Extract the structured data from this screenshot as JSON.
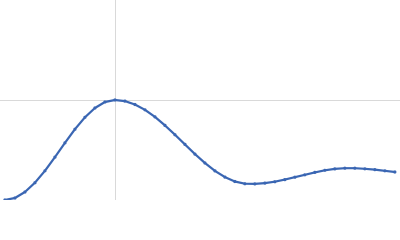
{
  "chart_data": {
    "type": "line",
    "color": "#3a66b3",
    "grid": true,
    "markers": true,
    "x": [
      0.043,
      0.13,
      0.217,
      0.304,
      0.391,
      0.478,
      0.565,
      0.652,
      0.739,
      0.826,
      0.913,
      1,
      1.087,
      1.174,
      1.261,
      1.348,
      1.435,
      1.522,
      1.609,
      1.696,
      1.783,
      1.87,
      1.957,
      2.043,
      2.13,
      2.217,
      2.304,
      2.391,
      2.478,
      2.565,
      2.652,
      2.739,
      2.826,
      2.913,
      3.0,
      3.087,
      3.174,
      3.261,
      3.348,
      3.435
    ],
    "values": [
      0,
      0.02,
      0.08,
      0.173,
      0.292,
      0.429,
      0.571,
      0.708,
      0.827,
      0.92,
      0.98,
      1,
      0.989,
      0.955,
      0.902,
      0.831,
      0.746,
      0.653,
      0.556,
      0.459,
      0.37,
      0.291,
      0.229,
      0.185,
      0.163,
      0.161,
      0.169,
      0.183,
      0.204,
      0.228,
      0.252,
      0.276,
      0.297,
      0.311,
      0.318,
      0.318,
      0.312,
      0.304,
      0.292,
      0.28
    ],
    "xlim": [
      0,
      3.48
    ],
    "ylim": [
      0,
      2
    ],
    "xticks": [
      1
    ],
    "yticks": [
      1
    ]
  }
}
